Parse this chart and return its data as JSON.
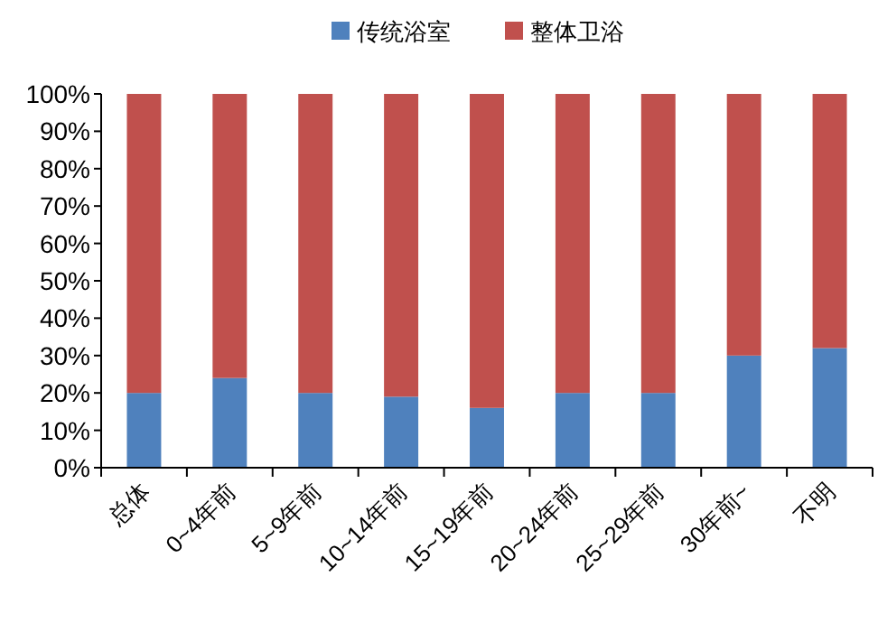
{
  "chart_data": {
    "type": "bar",
    "stacked": true,
    "legend": "top",
    "grid": false,
    "categories": [
      "总体",
      "0~4年前",
      "5~9年前",
      "10~14年前",
      "15~19年前",
      "20~24年前",
      "25~29年前",
      "30年前~",
      "不明"
    ],
    "series": [
      {
        "name": "传统浴室",
        "color": "#4f81bd",
        "values": [
          20,
          24,
          20,
          19,
          16,
          20,
          20,
          30,
          32
        ]
      },
      {
        "name": "整体卫浴",
        "color": "#c0504d",
        "values": [
          80,
          76,
          80,
          81,
          84,
          80,
          80,
          70,
          68
        ]
      }
    ],
    "ylim": [
      0,
      100
    ],
    "yticks": [
      {
        "value": 0,
        "label": "0%"
      },
      {
        "value": 10,
        "label": "10%"
      },
      {
        "value": 20,
        "label": "20%"
      },
      {
        "value": 30,
        "label": "30%"
      },
      {
        "value": 40,
        "label": "40%"
      },
      {
        "value": 50,
        "label": "50%"
      },
      {
        "value": 60,
        "label": "60%"
      },
      {
        "value": 70,
        "label": "70%"
      },
      {
        "value": 80,
        "label": "80%"
      },
      {
        "value": 90,
        "label": "90%"
      },
      {
        "value": 100,
        "label": "100%"
      }
    ]
  }
}
